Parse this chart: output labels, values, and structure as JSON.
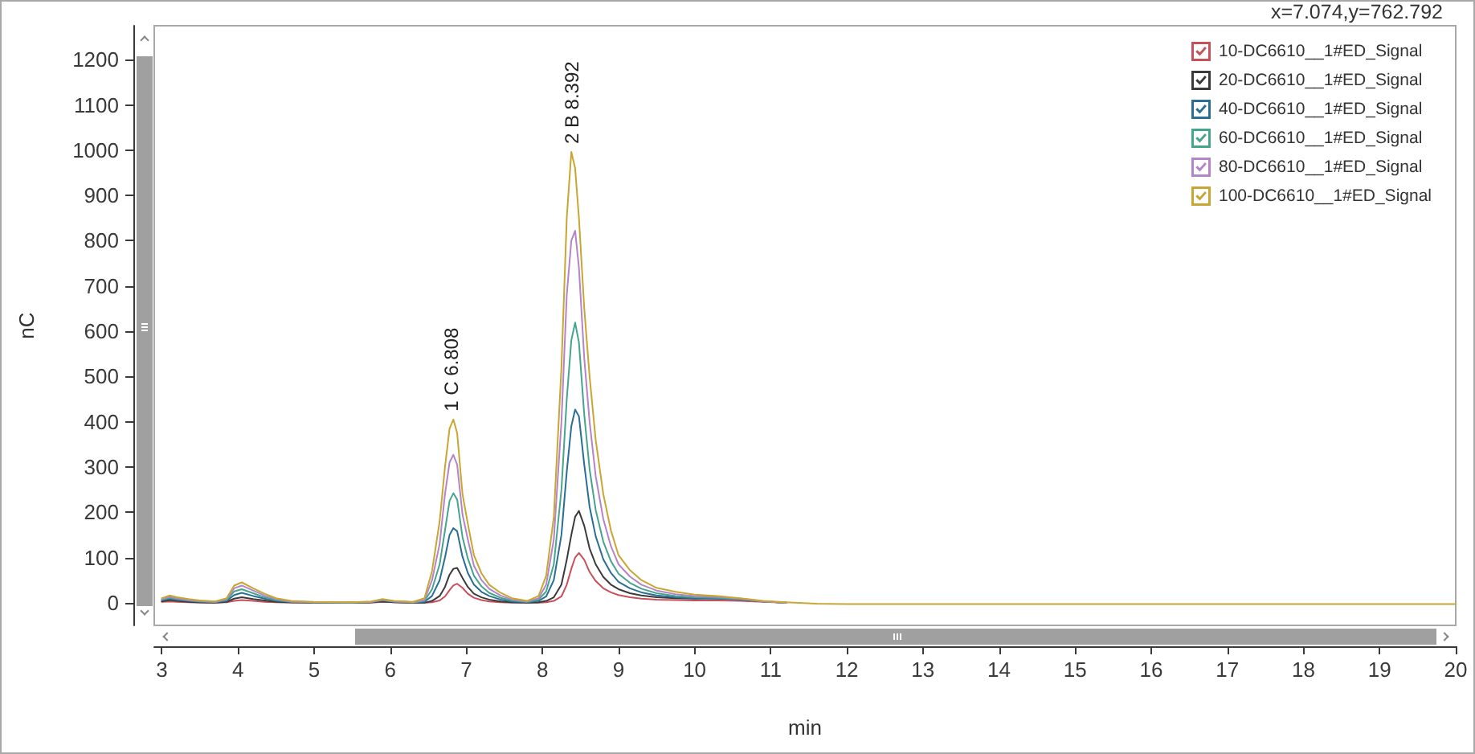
{
  "chart_data": {
    "type": "line",
    "xlabel": "min",
    "ylabel": "nC",
    "x": [
      3.0,
      3.1,
      3.2,
      3.35,
      3.5,
      3.7,
      3.85,
      3.95,
      4.05,
      4.2,
      4.35,
      4.5,
      4.7,
      5.0,
      5.5,
      5.75,
      5.9,
      6.05,
      6.3,
      6.45,
      6.55,
      6.65,
      6.72,
      6.78,
      6.83,
      6.88,
      6.95,
      7.02,
      7.1,
      7.2,
      7.3,
      7.45,
      7.6,
      7.8,
      7.95,
      8.05,
      8.15,
      8.25,
      8.32,
      8.38,
      8.43,
      8.48,
      8.55,
      8.62,
      8.7,
      8.8,
      8.9,
      9.0,
      9.15,
      9.3,
      9.5,
      9.75,
      10.0,
      10.3,
      10.6,
      10.9,
      11.2,
      11.6,
      12.0,
      13.0,
      14.0,
      16.0,
      18.0,
      20.0
    ],
    "series": [
      {
        "name": "10-DC6610__1#ED_Signal",
        "color": "#c9505a",
        "values": [
          2,
          3,
          2,
          1,
          0,
          0,
          1,
          4,
          6,
          4,
          2,
          1,
          0,
          0,
          0,
          0,
          2,
          1,
          0,
          0,
          1,
          5,
          14,
          28,
          38,
          42,
          33,
          20,
          11,
          6,
          3,
          1,
          0,
          0,
          0,
          1,
          4,
          14,
          40,
          75,
          100,
          110,
          95,
          68,
          48,
          32,
          23,
          17,
          12,
          9,
          7,
          6,
          5,
          5,
          4,
          2,
          0,
          null,
          null,
          null,
          null,
          null,
          null,
          null
        ]
      },
      {
        "name": "20-DC6610__1#ED_Signal",
        "color": "#3a3a3a",
        "values": [
          3,
          6,
          4,
          2,
          1,
          0,
          2,
          9,
          12,
          8,
          5,
          2,
          1,
          0,
          0,
          1,
          3,
          1,
          0,
          0,
          4,
          15,
          35,
          62,
          75,
          77,
          55,
          35,
          20,
          12,
          7,
          3,
          1,
          0,
          1,
          4,
          12,
          40,
          95,
          150,
          190,
          203,
          170,
          120,
          85,
          57,
          40,
          30,
          21,
          16,
          12,
          10,
          9,
          10,
          8,
          3,
          0,
          null,
          null,
          null,
          null,
          null,
          null,
          null
        ]
      },
      {
        "name": "40-DC6610__1#ED_Signal",
        "color": "#2a6e96",
        "values": [
          5,
          9,
          6,
          4,
          2,
          1,
          4,
          17,
          22,
          15,
          9,
          4,
          2,
          0,
          0,
          1,
          5,
          2,
          0,
          2,
          15,
          50,
          100,
          150,
          165,
          158,
          102,
          66,
          40,
          24,
          15,
          7,
          3,
          1,
          4,
          14,
          50,
          150,
          290,
          390,
          427,
          412,
          305,
          212,
          147,
          96,
          66,
          46,
          32,
          23,
          16,
          12,
          10,
          9,
          7,
          3,
          0,
          null,
          null,
          null,
          null,
          null,
          null,
          null
        ]
      },
      {
        "name": "60-DC6610__1#ED_Signal",
        "color": "#45a58c",
        "values": [
          7,
          11,
          8,
          5,
          3,
          2,
          6,
          25,
          30,
          21,
          12,
          6,
          2,
          1,
          0,
          2,
          6,
          3,
          1,
          4,
          30,
          85,
          160,
          225,
          242,
          228,
          145,
          98,
          60,
          36,
          22,
          11,
          5,
          2,
          7,
          25,
          85,
          250,
          450,
          580,
          619,
          575,
          415,
          295,
          205,
          135,
          92,
          64,
          44,
          31,
          21,
          15,
          12,
          11,
          8,
          3,
          0,
          null,
          null,
          null,
          null,
          null,
          null,
          null
        ]
      },
      {
        "name": "80-DC6610__1#ED_Signal",
        "color": "#b584c8",
        "values": [
          8,
          13,
          10,
          6,
          4,
          2,
          8,
          32,
          38,
          27,
          16,
          8,
          3,
          1,
          1,
          2,
          7,
          3,
          1,
          6,
          50,
          130,
          240,
          310,
          327,
          305,
          195,
          140,
          82,
          50,
          31,
          16,
          7,
          3,
          10,
          40,
          140,
          400,
          680,
          800,
          822,
          740,
          540,
          400,
          280,
          185,
          125,
          85,
          58,
          40,
          27,
          19,
          15,
          13,
          9,
          3,
          0,
          null,
          null,
          null,
          null,
          null,
          null,
          null
        ]
      },
      {
        "name": "100-DC6610__1#ED_Signal",
        "color": "#c8a632",
        "values": [
          10,
          16,
          12,
          8,
          5,
          3,
          10,
          38,
          45,
          32,
          20,
          10,
          4,
          2,
          1,
          3,
          8,
          4,
          2,
          10,
          70,
          180,
          300,
          385,
          405,
          375,
          240,
          175,
          105,
          65,
          40,
          22,
          10,
          4,
          15,
          60,
          190,
          520,
          850,
          996,
          960,
          850,
          650,
          500,
          360,
          240,
          160,
          105,
          72,
          50,
          33,
          24,
          18,
          15,
          10,
          4,
          1,
          -2,
          -3,
          -3,
          -3,
          -3,
          -3,
          -3
        ]
      }
    ],
    "xlim": [
      2.9,
      20
    ],
    "xticks": [
      3,
      4,
      5,
      6,
      7,
      8,
      9,
      10,
      11,
      12,
      13,
      14,
      15,
      16,
      17,
      18,
      19,
      20
    ],
    "ylim": [
      -50,
      1275
    ],
    "yticks": [
      0,
      100,
      200,
      300,
      400,
      500,
      600,
      700,
      800,
      900,
      1000,
      1100,
      1200
    ],
    "legend": "top right",
    "marker": "none",
    "line_style": "solid",
    "annotations": [
      "x=7.074,y=762.792",
      {
        "text": "1 C 6.808",
        "x": 6.808,
        "y": 405
      },
      {
        "text": "2 B 8.392",
        "x": 8.392,
        "y": 996
      }
    ]
  }
}
